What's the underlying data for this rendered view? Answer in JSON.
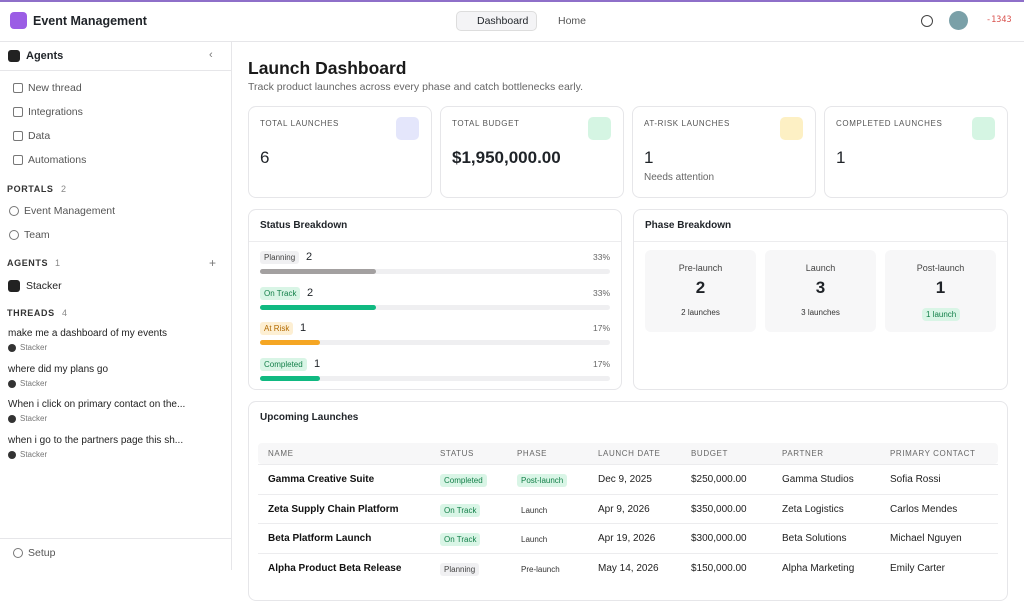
{
  "app": {
    "title": "Event Management",
    "nav": [
      "Dashboard",
      "Home"
    ],
    "badge": "-1343"
  },
  "sidebar": {
    "header": "Agents",
    "items": [
      "New thread",
      "Integrations",
      "Data",
      "Automations"
    ],
    "portals": {
      "label": "PORTALS",
      "count": 2,
      "items": [
        "Event Management",
        "Team"
      ]
    },
    "agents": {
      "label": "AGENTS",
      "count": 1,
      "items": [
        "Stacker"
      ]
    },
    "threads": {
      "label": "THREADS",
      "count": 4,
      "items": [
        {
          "title": "make me a dashboard of my events",
          "agent": "Stacker"
        },
        {
          "title": "where did my plans go",
          "agent": "Stacker"
        },
        {
          "title": "When i click on primary contact on the...",
          "agent": "Stacker"
        },
        {
          "title": "when i go to the partners page this sh...",
          "agent": "Stacker"
        }
      ]
    },
    "footer": "Setup"
  },
  "main": {
    "title": "Launch Dashboard",
    "subtitle": "Track product launches across every phase and catch bottlenecks early.",
    "stats": [
      {
        "label": "TOTAL LAUNCHES",
        "value": "6"
      },
      {
        "label": "TOTAL BUDGET",
        "value": "$1,950,000.00"
      },
      {
        "label": "AT-RISK LAUNCHES",
        "value": "1",
        "note": "Needs attention"
      },
      {
        "label": "COMPLETED LAUNCHES",
        "value": "1"
      }
    ],
    "status_breakdown": {
      "title": "Status Breakdown",
      "rows": [
        {
          "label": "Planning",
          "count": 2,
          "percent": 33,
          "percent_label": "33%"
        },
        {
          "label": "On Track",
          "count": 2,
          "percent": 33,
          "percent_label": "33%"
        },
        {
          "label": "At Risk",
          "count": 1,
          "percent": 17,
          "percent_label": "17%"
        },
        {
          "label": "Completed",
          "count": 1,
          "percent": 17,
          "percent_label": "17%"
        }
      ]
    },
    "phase_breakdown": {
      "title": "Phase Breakdown",
      "phases": [
        {
          "label": "Pre-launch",
          "count": 2,
          "note": "2 launches"
        },
        {
          "label": "Launch",
          "count": 3,
          "note": "3 launches"
        },
        {
          "label": "Post-launch",
          "count": 1,
          "note": "1 launch"
        }
      ]
    },
    "upcoming": {
      "title": "Upcoming Launches",
      "columns": [
        "NAME",
        "STATUS",
        "PHASE",
        "LAUNCH DATE",
        "BUDGET",
        "PARTNER",
        "PRIMARY CONTACT"
      ],
      "rows": [
        [
          "Gamma Creative Suite",
          "Completed",
          "Post-launch",
          "Dec 9, 2025",
          "$250,000.00",
          "Gamma Studios",
          "Sofia Rossi"
        ],
        [
          "Zeta Supply Chain Platform",
          "On Track",
          "Launch",
          "Apr 9, 2026",
          "$350,000.00",
          "Zeta Logistics",
          "Carlos Mendes"
        ],
        [
          "Beta Platform Launch",
          "On Track",
          "Launch",
          "Apr 19, 2026",
          "$300,000.00",
          "Beta Solutions",
          "Michael Nguyen"
        ],
        [
          "Alpha Product Beta Release",
          "Planning",
          "Pre-launch",
          "May 14, 2026",
          "$150,000.00",
          "Alpha Marketing",
          "Emily Carter"
        ]
      ]
    }
  }
}
